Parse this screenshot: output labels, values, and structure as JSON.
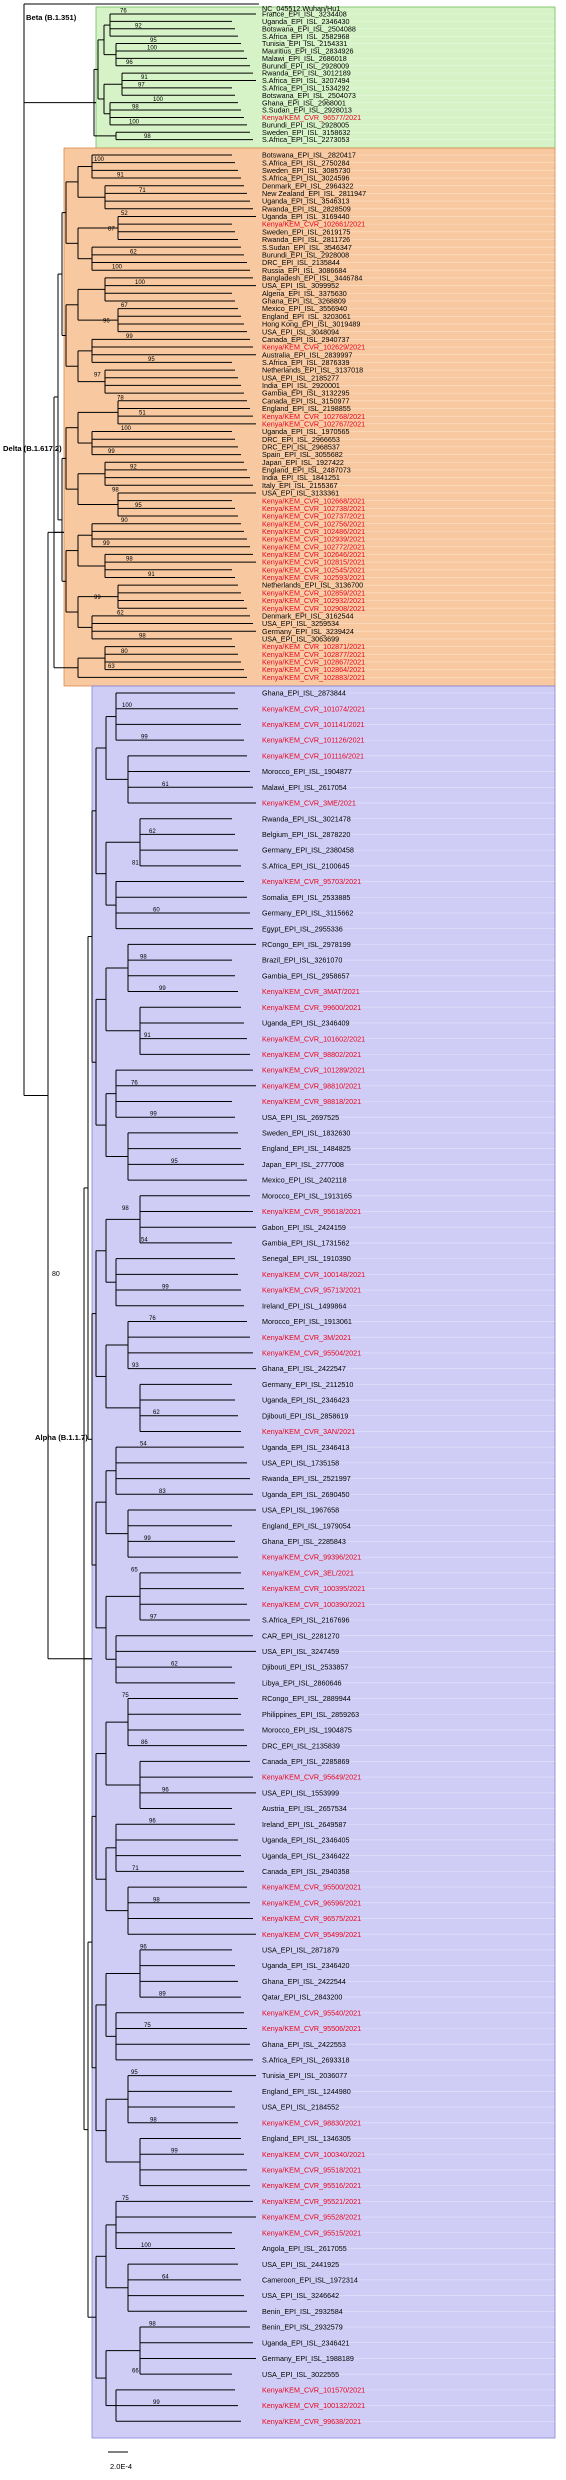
{
  "root_label": "NC_045512.Wuhan/Hu1",
  "root_support": "80",
  "scale_label": "2.0E-4",
  "clades": [
    {
      "name": "Beta (B.1.351)",
      "fill": "#d5f3c6",
      "stroke": "#6fbe5a",
      "leaves": [
        {
          "label": "France_EPI_ISL_3234408",
          "kenya": false
        },
        {
          "label": "Uganda_EPI_ISL_2346430",
          "kenya": false
        },
        {
          "label": "Botswana_EPI_ISL_2504088",
          "kenya": false
        },
        {
          "label": "S.Africa_EPI_ISL_2582968",
          "kenya": false
        },
        {
          "label": "Tunisia_EPI_ISL_2154331",
          "kenya": false
        },
        {
          "label": "Mauritius_EPI_ISL_2834926",
          "kenya": false
        },
        {
          "label": "Malawi_EPI_ISL_2686018",
          "kenya": false
        },
        {
          "label": "Burundi_EPI_ISL_2928009",
          "kenya": false
        },
        {
          "label": "Rwanda_EPI_ISL_3012189",
          "kenya": false
        },
        {
          "label": "S.Africa_EPI_ISL_3207494",
          "kenya": false
        },
        {
          "label": "S.Africa_EPI_ISL_1534292",
          "kenya": false
        },
        {
          "label": "Botswana_EPI_ISL_2504073",
          "kenya": false
        },
        {
          "label": "Ghana_EPI_ISL_2968001",
          "kenya": false
        },
        {
          "label": "S.Sudan_EPI_ISL_2928013",
          "kenya": false
        },
        {
          "label": "Kenya/KEM_CVR_96577/2021",
          "kenya": true
        },
        {
          "label": "Burundi_EPI_ISL_2928005",
          "kenya": false
        },
        {
          "label": "Sweden_EPI_ISL_3158632",
          "kenya": false
        },
        {
          "label": "S.Africa_EPI_ISL_2273053",
          "kenya": false
        }
      ]
    },
    {
      "name": "Delta (B.1.617.2)",
      "fill": "#f8c9a0",
      "stroke": "#d98a4a",
      "leaves": [
        {
          "label": "Botswana_EPI_ISL_2820417",
          "kenya": false
        },
        {
          "label": "S.Africa_EPI_ISL_2750284",
          "kenya": false
        },
        {
          "label": "Sweden_EPI_ISL_3085730",
          "kenya": false
        },
        {
          "label": "S.Africa_EPI_ISL_3024596",
          "kenya": false
        },
        {
          "label": "Denmark_EPI_ISL_2964322",
          "kenya": false
        },
        {
          "label": "New Zealand_EPI_ISL_2811947",
          "kenya": false
        },
        {
          "label": "Uganda_EPI_ISL_3546313",
          "kenya": false
        },
        {
          "label": "Rwanda_EPI_ISL_2828509",
          "kenya": false
        },
        {
          "label": "Uganda_EPI_ISL_3169440",
          "kenya": false
        },
        {
          "label": "Kenya/KEM_CVR_102661/2021",
          "kenya": true
        },
        {
          "label": "Sweden_EPI_ISL_2619175",
          "kenya": false
        },
        {
          "label": "Rwanda_EPI_ISL_2811726",
          "kenya": false
        },
        {
          "label": "S.Sudan_EPI_ISL_3546347",
          "kenya": false
        },
        {
          "label": "Burundi_EPI_ISL_2928008",
          "kenya": false
        },
        {
          "label": "DRC_EPI_ISL_2135844",
          "kenya": false
        },
        {
          "label": "Russia_EPI_ISL_3086684",
          "kenya": false
        },
        {
          "label": "Bangladesh_EPI_ISL_3446784",
          "kenya": false
        },
        {
          "label": "USA_EPI_ISL_3099952",
          "kenya": false
        },
        {
          "label": "Algeria_EPI_ISL_3375630",
          "kenya": false
        },
        {
          "label": "Ghana_EPI_ISL_3268809",
          "kenya": false
        },
        {
          "label": "Mexico_EPI_ISL_3556940",
          "kenya": false
        },
        {
          "label": "England_EPI_ISL_3203061",
          "kenya": false
        },
        {
          "label": "Hong Kong_EPI_ISL_3019489",
          "kenya": false
        },
        {
          "label": "USA_EPI_ISL_3048094",
          "kenya": false
        },
        {
          "label": "Canada_EPI_ISL_2940737",
          "kenya": false
        },
        {
          "label": "Kenya/KEM_CVR_102629/2021",
          "kenya": true
        },
        {
          "label": "Australia_EPI_ISL_2839997",
          "kenya": false
        },
        {
          "label": "S.Africa_EPI_ISL_2876339",
          "kenya": false
        },
        {
          "label": "Netherlands_EPI_ISL_3137018",
          "kenya": false
        },
        {
          "label": "USA_EPI_ISL_2185277",
          "kenya": false
        },
        {
          "label": "India_EPI_ISL_2920001",
          "kenya": false
        },
        {
          "label": "Gambia_EPI_ISL_3132295",
          "kenya": false
        },
        {
          "label": "Canada_EPI_ISL_3150977",
          "kenya": false
        },
        {
          "label": "England_EPI_ISL_2198855",
          "kenya": false
        },
        {
          "label": "Kenya/KEM_CVR_102768/2021",
          "kenya": true
        },
        {
          "label": "Kenya/KEM_CVR_102767/2021",
          "kenya": true
        },
        {
          "label": "Uganda_EPI_ISL_1970565",
          "kenya": false
        },
        {
          "label": "DRC_EPI_ISL_2966653",
          "kenya": false
        },
        {
          "label": "DRC_EPI_ISL_2968537",
          "kenya": false
        },
        {
          "label": "Spain_EPI_ISL_3055682",
          "kenya": false
        },
        {
          "label": "Japan_EPI_ISL_1927422",
          "kenya": false
        },
        {
          "label": "England_EPI_ISL_2487073",
          "kenya": false
        },
        {
          "label": "India_EPI_ISL_1841251",
          "kenya": false
        },
        {
          "label": "Italy_EPI_ISL_2155367",
          "kenya": false
        },
        {
          "label": "USA_EPI_ISL_3133361",
          "kenya": false
        },
        {
          "label": "Kenya/KEM_CVR_102668/2021",
          "kenya": true
        },
        {
          "label": "Kenya/KEM_CVR_102738/2021",
          "kenya": true
        },
        {
          "label": "Kenya/KEM_CVR_102737/2021",
          "kenya": true
        },
        {
          "label": "Kenya/KEM_CVR_102756/2021",
          "kenya": true
        },
        {
          "label": "Kenya/KEM_CVR_102486/2021",
          "kenya": true
        },
        {
          "label": "Kenya/KEM_CVR_102939/2021",
          "kenya": true
        },
        {
          "label": "Kenya/KEM_CVR_102772/2021",
          "kenya": true
        },
        {
          "label": "Kenya/KEM_CVR_102646/2021",
          "kenya": true
        },
        {
          "label": "Kenya/KEM_CVR_102815/2021",
          "kenya": true
        },
        {
          "label": "Kenya/KEM_CVR_102545/2021",
          "kenya": true
        },
        {
          "label": "Kenya/KEM_CVR_102593/2021",
          "kenya": true
        },
        {
          "label": "Netherlands_EPI_ISL_3136700",
          "kenya": false
        },
        {
          "label": "Kenya/KEM_CVR_102859/2021",
          "kenya": true
        },
        {
          "label": "Kenya/KEM_CVR_102932/2021",
          "kenya": true
        },
        {
          "label": "Kenya/KEM_CVR_102908/2021",
          "kenya": true
        },
        {
          "label": "Denmark_EPI_ISL_3162544",
          "kenya": false
        },
        {
          "label": "USA_EPI_ISL_3259534",
          "kenya": false
        },
        {
          "label": "Germany_EPI_ISL_3239424",
          "kenya": false
        },
        {
          "label": "USA_EPI_ISL_3063699",
          "kenya": false
        },
        {
          "label": "Kenya/KEM_CVR_102871/2021",
          "kenya": true
        },
        {
          "label": "Kenya/KEM_CVR_102877/2021",
          "kenya": true
        },
        {
          "label": "Kenya/KEM_CVR_102867/2021",
          "kenya": true
        },
        {
          "label": "Kenya/KEM_CVR_102864/2021",
          "kenya": true
        },
        {
          "label": "Kenya/KEM_CVR_102883/2021",
          "kenya": true
        }
      ]
    },
    {
      "name": "Alpha (B.1.1.7)",
      "fill": "#cfcdf6",
      "stroke": "#8580d8",
      "leaves": [
        {
          "label": "Ghana_EPI_ISL_2873844",
          "kenya": false
        },
        {
          "label": "Kenya/KEM_CVR_101074/2021",
          "kenya": true
        },
        {
          "label": "Kenya/KEM_CVR_101141/2021",
          "kenya": true
        },
        {
          "label": "Kenya/KEM_CVR_101126/2021",
          "kenya": true
        },
        {
          "label": "Kenya/KEM_CVR_101116/2021",
          "kenya": true
        },
        {
          "label": "Morocco_EPI_ISL_1904877",
          "kenya": false
        },
        {
          "label": "Malawi_EPI_ISL_2617054",
          "kenya": false
        },
        {
          "label": "Kenya/KEM_CVR_3ME/2021",
          "kenya": true
        },
        {
          "label": "Rwanda_EPI_ISL_3021478",
          "kenya": false
        },
        {
          "label": "Belgium_EPI_ISL_2878220",
          "kenya": false
        },
        {
          "label": "Germany_EPI_ISL_2380458",
          "kenya": false
        },
        {
          "label": "S.Africa_EPI_ISL_2100645",
          "kenya": false
        },
        {
          "label": "Kenya/KEM_CVR_95703/2021",
          "kenya": true
        },
        {
          "label": "Somalia_EPI_ISL_2533885",
          "kenya": false
        },
        {
          "label": "Germany_EPI_ISL_3115662",
          "kenya": false
        },
        {
          "label": "Egypt_EPI_ISL_2955336",
          "kenya": false
        },
        {
          "label": "RCongo_EPI_ISL_2978199",
          "kenya": false
        },
        {
          "label": "Brazil_EPI_ISL_3261070",
          "kenya": false
        },
        {
          "label": "Gambia_EPI_ISL_2958657",
          "kenya": false
        },
        {
          "label": "Kenya/KEM_CVR_3MAT/2021",
          "kenya": true
        },
        {
          "label": "Kenya/KEM_CVR_99600/2021",
          "kenya": true
        },
        {
          "label": "Uganda_EPI_ISL_2346409",
          "kenya": false
        },
        {
          "label": "Kenya/KEM_CVR_101602/2021",
          "kenya": true
        },
        {
          "label": "Kenya/KEM_CVR_98802/2021",
          "kenya": true
        },
        {
          "label": "Kenya/KEM_CVR_101289/2021",
          "kenya": true
        },
        {
          "label": "Kenya/KEM_CVR_98810/2021",
          "kenya": true
        },
        {
          "label": "Kenya/KEM_CVR_98818/2021",
          "kenya": true
        },
        {
          "label": "USA_EPI_ISL_2697525",
          "kenya": false
        },
        {
          "label": "Sweden_EPI_ISL_1832630",
          "kenya": false
        },
        {
          "label": "England_EPI_ISL_1484825",
          "kenya": false
        },
        {
          "label": "Japan_EPI_ISL_2777008",
          "kenya": false
        },
        {
          "label": "Mexico_EPI_ISL_2402118",
          "kenya": false
        },
        {
          "label": "Morocco_EPI_ISL_1913165",
          "kenya": false
        },
        {
          "label": "Kenya/KEM_CVR_95618/2021",
          "kenya": true
        },
        {
          "label": "Gabon_EPI_ISL_2424159",
          "kenya": false
        },
        {
          "label": "Gambia_EPI_ISL_1731562",
          "kenya": false
        },
        {
          "label": "Senegal_EPI_ISL_1910390",
          "kenya": false
        },
        {
          "label": "Kenya/KEM_CVR_100148/2021",
          "kenya": true
        },
        {
          "label": "Kenya/KEM_CVR_95713/2021",
          "kenya": true
        },
        {
          "label": "Ireland_EPI_ISL_1499864",
          "kenya": false
        },
        {
          "label": "Morocco_EPI_ISL_1913061",
          "kenya": false
        },
        {
          "label": "Kenya/KEM_CVR_3M/2021",
          "kenya": true
        },
        {
          "label": "Kenya/KEM_CVR_95504/2021",
          "kenya": true
        },
        {
          "label": "Ghana_EPI_ISL_2422547",
          "kenya": false
        },
        {
          "label": "Germany_EPI_ISL_2112510",
          "kenya": false
        },
        {
          "label": "Uganda_EPI_ISL_2346423",
          "kenya": false
        },
        {
          "label": "Djibouti_EPI_ISL_2858619",
          "kenya": false
        },
        {
          "label": "Kenya/KEM_CVR_3AN/2021",
          "kenya": true
        },
        {
          "label": "Uganda_EPI_ISL_2346413",
          "kenya": false
        },
        {
          "label": "USA_EPI_ISL_1735158",
          "kenya": false
        },
        {
          "label": "Rwanda_EPI_ISL_2521997",
          "kenya": false
        },
        {
          "label": "Uganda_EPI_ISL_2690450",
          "kenya": false
        },
        {
          "label": "USA_EPI_ISL_1967658",
          "kenya": false
        },
        {
          "label": "England_EPI_ISL_1979054",
          "kenya": false
        },
        {
          "label": "Ghana_EPI_ISL_2285843",
          "kenya": false
        },
        {
          "label": "Kenya/KEM_CVR_99396/2021",
          "kenya": true
        },
        {
          "label": "Kenya/KEM_CVR_3EL/2021",
          "kenya": true
        },
        {
          "label": "Kenya/KEM_CVR_100395/2021",
          "kenya": true
        },
        {
          "label": "Kenya/KEM_CVR_100390/2021",
          "kenya": true
        },
        {
          "label": "S.Africa_EPI_ISL_2167696",
          "kenya": false
        },
        {
          "label": "CAR_EPI_ISL_2281270",
          "kenya": false
        },
        {
          "label": "USA_EPI_ISL_3247459",
          "kenya": false
        },
        {
          "label": "Djibouti_EPI_ISL_2533857",
          "kenya": false
        },
        {
          "label": "Libya_EPI_ISL_2860646",
          "kenya": false
        },
        {
          "label": "RCongo_EPI_ISL_2889944",
          "kenya": false
        },
        {
          "label": "Philippines_EPI_ISL_2859263",
          "kenya": false
        },
        {
          "label": "Morocco_EPI_ISL_1904875",
          "kenya": false
        },
        {
          "label": "DRC_EPI_ISL_2135839",
          "kenya": false
        },
        {
          "label": "Canada_EPI_ISL_2285869",
          "kenya": false
        },
        {
          "label": "Kenya/KEM_CVR_95649/2021",
          "kenya": true
        },
        {
          "label": "USA_EPI_ISL_1553999",
          "kenya": false
        },
        {
          "label": "Austria_EPI_ISL_2657534",
          "kenya": false
        },
        {
          "label": "Ireland_EPI_ISL_2649587",
          "kenya": false
        },
        {
          "label": "Uganda_EPI_ISL_2346405",
          "kenya": false
        },
        {
          "label": "Uganda_EPI_ISL_2346422",
          "kenya": false
        },
        {
          "label": "Canada_EPI_ISL_2940358",
          "kenya": false
        },
        {
          "label": "Kenya/KEM_CVR_95500/2021",
          "kenya": true
        },
        {
          "label": "Kenya/KEM_CVR_96596/2021",
          "kenya": true
        },
        {
          "label": "Kenya/KEM_CVR_96575/2021",
          "kenya": true
        },
        {
          "label": "Kenya/KEM_CVR_95499/2021",
          "kenya": true
        },
        {
          "label": "USA_EPI_ISL_2871879",
          "kenya": false
        },
        {
          "label": "Uganda_EPI_ISL_2346420",
          "kenya": false
        },
        {
          "label": "Ghana_EPI_ISL_2422544",
          "kenya": false
        },
        {
          "label": "Qatar_EPI_ISL_2843200",
          "kenya": false
        },
        {
          "label": "Kenya/KEM_CVR_95540/2021",
          "kenya": true
        },
        {
          "label": "Kenya/KEM_CVR_95506/2021",
          "kenya": true
        },
        {
          "label": "Ghana_EPI_ISL_2422553",
          "kenya": false
        },
        {
          "label": "S.Africa_EPI_ISL_2693318",
          "kenya": false
        },
        {
          "label": "Tunisia_EPI_ISL_2036077",
          "kenya": false
        },
        {
          "label": "England_EPI_ISL_1244980",
          "kenya": false
        },
        {
          "label": "USA_EPI_ISL_2184552",
          "kenya": false
        },
        {
          "label": "Kenya/KEM_CVR_98830/2021",
          "kenya": true
        },
        {
          "label": "England_EPI_ISL_1346305",
          "kenya": false
        },
        {
          "label": "Kenya/KEM_CVR_100340/2021",
          "kenya": true
        },
        {
          "label": "Kenya/KEM_CVR_95518/2021",
          "kenya": true
        },
        {
          "label": "Kenya/KEM_CVR_95516/2021",
          "kenya": true
        },
        {
          "label": "Kenya/KEM_CVR_95521/2021",
          "kenya": true
        },
        {
          "label": "Kenya/KEM_CVR_95528/2021",
          "kenya": true
        },
        {
          "label": "Kenya/KEM_CVR_95515/2021",
          "kenya": true
        },
        {
          "label": "Angola_EPI_ISL_2617055",
          "kenya": false
        },
        {
          "label": "USA_EPI_ISL_2441925",
          "kenya": false
        },
        {
          "label": "Cameroon_EPI_ISL_1972314",
          "kenya": false
        },
        {
          "label": "USA_EPI_ISL_3246642",
          "kenya": false
        },
        {
          "label": "Benin_EPI_ISL_2932584",
          "kenya": false
        },
        {
          "label": "Benin_EPI_ISL_2932579",
          "kenya": false
        },
        {
          "label": "Uganda_EPI_ISL_2346421",
          "kenya": false
        },
        {
          "label": "Germany_EPI_ISL_1988189",
          "kenya": false
        },
        {
          "label": "USA_EPI_ISL_3022555",
          "kenya": false
        },
        {
          "label": "Kenya/KEM_CVR_101570/2021",
          "kenya": true
        },
        {
          "label": "Kenya/KEM_CVR_100132/2021",
          "kenya": true
        },
        {
          "label": "Kenya/KEM_CVR_99638/2021",
          "kenya": true
        }
      ]
    }
  ],
  "support_values": {
    "beta": [
      "76",
      "92",
      "95",
      "100",
      "96",
      "91",
      "97",
      "100",
      "98",
      "100",
      "98"
    ],
    "delta": [
      "100",
      "91",
      "71",
      "52",
      "87",
      "62",
      "100",
      "100",
      "67",
      "96",
      "99",
      "95",
      "97",
      "78",
      "51",
      "100",
      "99",
      "92",
      "98",
      "95",
      "90",
      "99",
      "98",
      "91",
      "99",
      "62",
      "98",
      "80",
      "63"
    ],
    "alpha": [
      "100",
      "99",
      "61",
      "62",
      "81",
      "60",
      "98",
      "99",
      "91",
      "76",
      "99",
      "95",
      "98",
      "54",
      "99",
      "76",
      "93",
      "62",
      "54",
      "83",
      "99",
      "65",
      "97",
      "62",
      "75",
      "86",
      "96",
      "96",
      "71",
      "98",
      "96",
      "89",
      "75",
      "95",
      "98",
      "99",
      "75",
      "100",
      "64",
      "98",
      "66",
      "99"
    ]
  },
  "colors": {
    "kenya": "#e8001c",
    "default": "#000000",
    "branch": "#000000"
  }
}
